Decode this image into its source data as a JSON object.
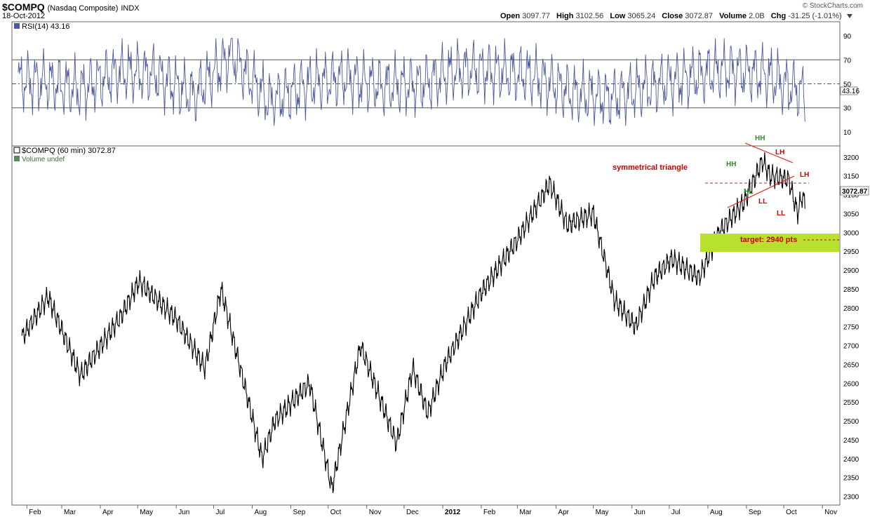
{
  "header": {
    "symbol": "$COMPQ",
    "name": "(Nasdaq Composite)",
    "exchange": "INDX",
    "date": "18-Oct-2012",
    "brand": "© StockCharts.com",
    "open_label": "Open",
    "open": "3097.77",
    "high_label": "High",
    "high": "3102.56",
    "low_label": "Low",
    "low": "3065.24",
    "close_label": "Close",
    "close": "3072.87",
    "volume_label": "Volume",
    "volume": "2.0B",
    "chg_label": "Chg",
    "chg": "-31.25 (-1.01%)"
  },
  "chart_data": [
    {
      "type": "line",
      "panel": "rsi",
      "title": "RSI(14) 43.16",
      "ylim": [
        0,
        100
      ],
      "ticks": [
        10,
        30,
        50,
        70,
        90
      ],
      "reference_lines": [
        30,
        50,
        70
      ],
      "last_value": 43.16,
      "line_color": "#4a5a9a",
      "x": [
        "2011-02",
        "2011-03",
        "2011-04",
        "2011-05",
        "2011-06",
        "2011-07",
        "2011-08",
        "2011-09",
        "2011-10",
        "2011-11",
        "2011-12",
        "2012-01",
        "2012-02",
        "2012-03",
        "2012-04",
        "2012-05",
        "2012-06",
        "2012-07",
        "2012-08",
        "2012-09",
        "2012-10"
      ],
      "values": [
        52,
        45,
        60,
        58,
        40,
        75,
        35,
        50,
        55,
        48,
        50,
        62,
        60,
        56,
        42,
        38,
        48,
        55,
        62,
        58,
        43
      ]
    },
    {
      "type": "line",
      "panel": "price",
      "title": "$COMPQ (60 min) 3072.87",
      "legend2": "Volume undef",
      "ylim": [
        2290,
        3220
      ],
      "ticks": [
        2300,
        2350,
        2400,
        2450,
        2500,
        2550,
        2600,
        2650,
        2700,
        2750,
        2800,
        2850,
        2900,
        2950,
        3000,
        3050,
        3100,
        3150,
        3200
      ],
      "last_value": "3072.87",
      "x_ticks": [
        "Feb",
        "Mar",
        "Apr",
        "May",
        "Jun",
        "Jul",
        "Aug",
        "Sep",
        "Oct",
        "Nov",
        "Dec",
        "2012",
        "Feb",
        "Mar",
        "Apr",
        "May",
        "Jun",
        "Jul",
        "Aug",
        "Sep",
        "Oct",
        "Nov"
      ],
      "x": [
        "2011-01-28",
        "2011-02-18",
        "2011-03-16",
        "2011-04-18",
        "2011-05-02",
        "2011-06-01",
        "2011-06-24",
        "2011-07-07",
        "2011-08-09",
        "2011-08-19",
        "2011-09-16",
        "2011-10-04",
        "2011-10-27",
        "2011-11-25",
        "2011-12-08",
        "2011-12-20",
        "2012-01-03",
        "2012-02-01",
        "2012-03-01",
        "2012-03-27",
        "2012-04-10",
        "2012-05-01",
        "2012-05-18",
        "2012-06-04",
        "2012-06-19",
        "2012-07-03",
        "2012-07-25",
        "2012-08-10",
        "2012-08-30",
        "2012-09-14",
        "2012-09-20",
        "2012-10-05",
        "2012-10-12",
        "2012-10-16",
        "2012-10-18"
      ],
      "values": [
        2720,
        2830,
        2620,
        2780,
        2870,
        2770,
        2640,
        2850,
        2400,
        2500,
        2600,
        2320,
        2700,
        2440,
        2640,
        2520,
        2650,
        2840,
        2980,
        3130,
        3020,
        3050,
        2820,
        2750,
        2880,
        2930,
        2880,
        3000,
        3080,
        3190,
        3150,
        3140,
        3050,
        3100,
        3072
      ]
    }
  ],
  "annotations": {
    "triangle": "symmetrical triangle",
    "target": "target: 2940 pts",
    "hh1": "HH",
    "hh2": "HH",
    "hl": "HL",
    "lh1": "LH",
    "lh2": "LH",
    "ll1": "LL",
    "ll2": "LL"
  },
  "colors": {
    "green": "#2e8b2e",
    "red": "#cc0000",
    "target_box": "#b8e02e",
    "rsi_line": "#4a5a9a"
  }
}
